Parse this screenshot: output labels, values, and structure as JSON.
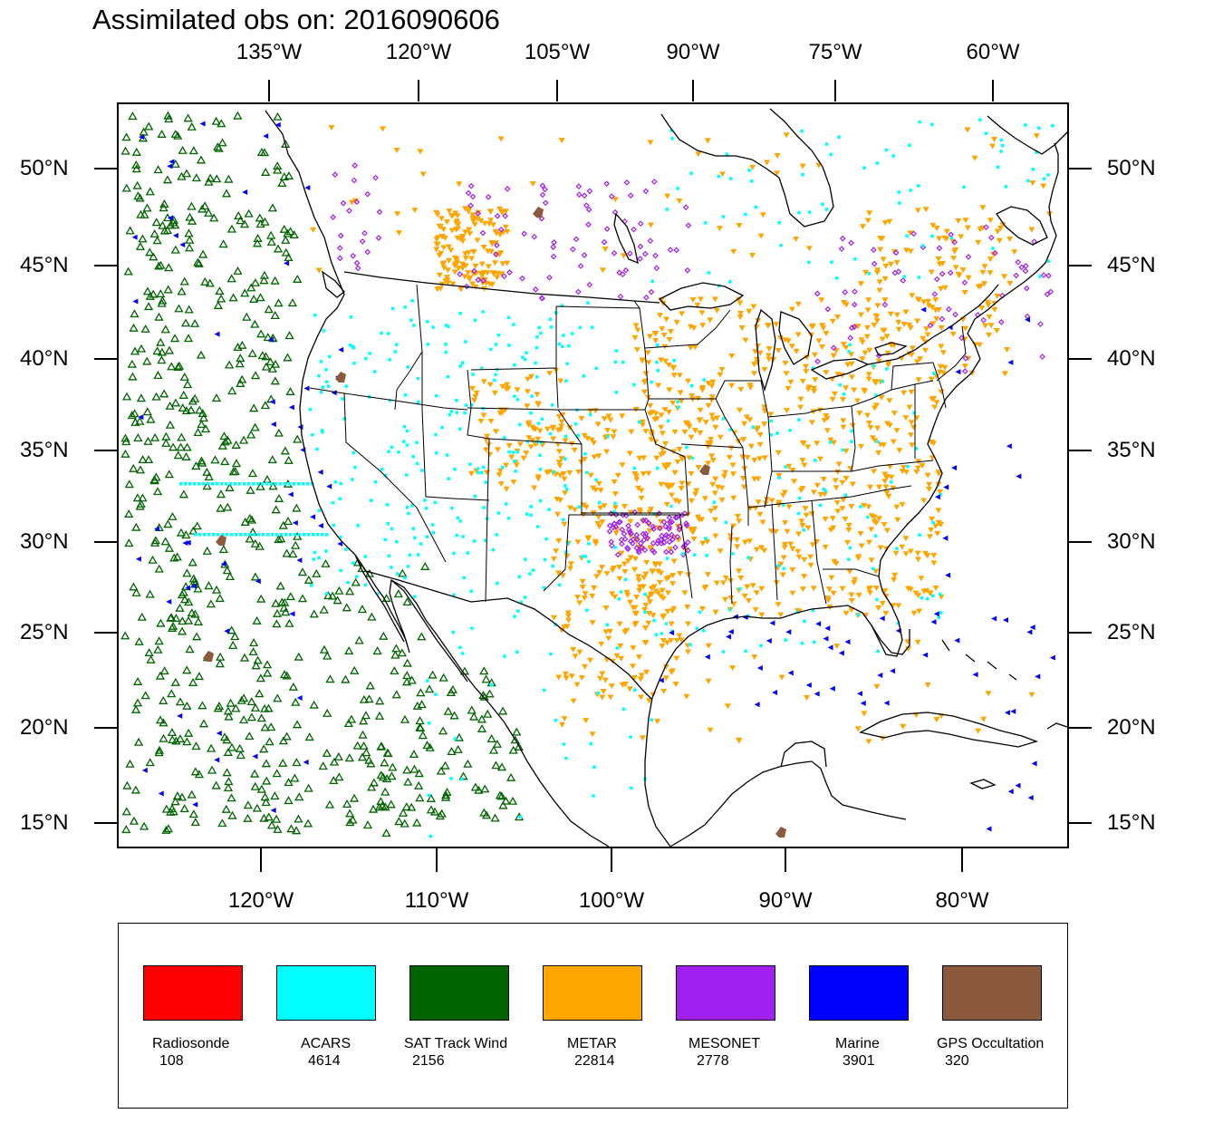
{
  "title": "Assimilated obs on: 2016090606",
  "top_lon_labels": [
    "135°W",
    "120°W",
    "105°W",
    "90°W",
    "75°W",
    "60°W"
  ],
  "bottom_lon_labels": [
    "120°W",
    "110°W",
    "100°W",
    "90°W",
    "80°W"
  ],
  "lat_labels": [
    "50°N",
    "45°N",
    "40°N",
    "35°N",
    "30°N",
    "25°N",
    "20°N",
    "15°N"
  ],
  "legend": [
    {
      "name": "Radiosonde",
      "count": "108",
      "color": "#ff0000"
    },
    {
      "name": "ACARS",
      "count": "4614",
      "color": "#00ffff"
    },
    {
      "name": "SAT Track Wind",
      "count": "2156",
      "color": "#006400"
    },
    {
      "name": "METAR",
      "count": "22814",
      "color": "#ffa500"
    },
    {
      "name": "MESONET",
      "count": "2778",
      "color": "#a020f0"
    },
    {
      "name": "Marine",
      "count": "3901",
      "color": "#0000ff"
    },
    {
      "name": "GPS Occultation",
      "count": "320",
      "color": "#8b5a3c"
    }
  ]
}
